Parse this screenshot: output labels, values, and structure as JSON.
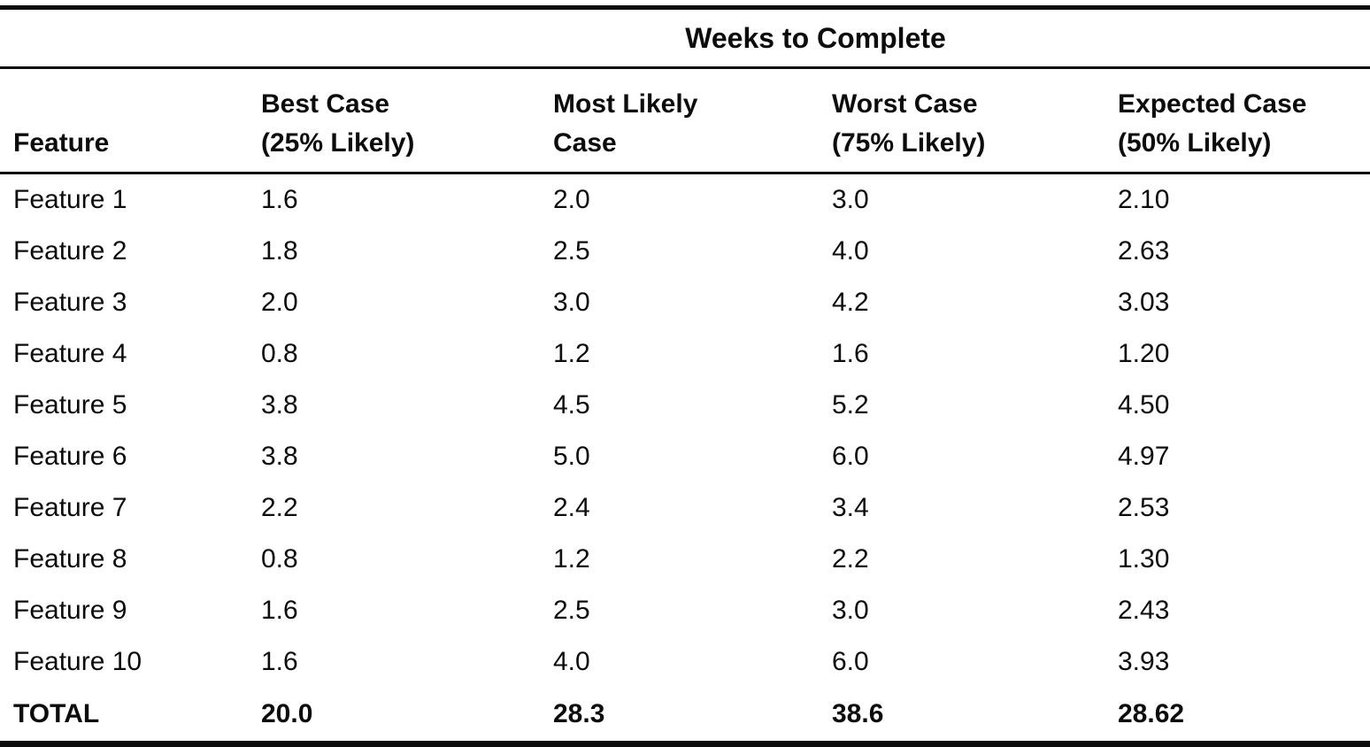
{
  "table": {
    "spanner_header": "Weeks to Complete",
    "columns": {
      "feature": "Feature",
      "best": [
        "Best Case",
        "(25% Likely)"
      ],
      "most_likely": [
        "Most Likely",
        "Case"
      ],
      "worst": [
        "Worst Case",
        "(75% Likely)"
      ],
      "expected": [
        "Expected Case",
        "(50% Likely)"
      ]
    },
    "rows": [
      [
        "Feature 1",
        "1.6",
        "2.0",
        "3.0",
        "2.10"
      ],
      [
        "Feature 2",
        "1.8",
        "2.5",
        "4.0",
        "2.63"
      ],
      [
        "Feature 3",
        "2.0",
        "3.0",
        "4.2",
        "3.03"
      ],
      [
        "Feature 4",
        "0.8",
        "1.2",
        "1.6",
        "1.20"
      ],
      [
        "Feature 5",
        "3.8",
        "4.5",
        "5.2",
        "4.50"
      ],
      [
        "Feature 6",
        "3.8",
        "5.0",
        "6.0",
        "4.97"
      ],
      [
        "Feature 7",
        "2.2",
        "2.4",
        "3.4",
        "2.53"
      ],
      [
        "Feature 8",
        "0.8",
        "1.2",
        "2.2",
        "1.30"
      ],
      [
        "Feature 9",
        "1.6",
        "2.5",
        "3.0",
        "2.43"
      ],
      [
        "Feature 10",
        "1.6",
        "4.0",
        "6.0",
        "3.93"
      ]
    ],
    "total": [
      "TOTAL",
      "20.0",
      "28.3",
      "38.6",
      "28.62"
    ]
  },
  "chart_data": {
    "type": "table",
    "title": "Weeks to Complete",
    "columns": [
      "Feature",
      "Best Case (25% Likely)",
      "Most Likely Case",
      "Worst Case (75% Likely)",
      "Expected Case (50% Likely)"
    ],
    "rows": [
      [
        "Feature 1",
        1.6,
        2.0,
        3.0,
        2.1
      ],
      [
        "Feature 2",
        1.8,
        2.5,
        4.0,
        2.63
      ],
      [
        "Feature 3",
        2.0,
        3.0,
        4.2,
        3.03
      ],
      [
        "Feature 4",
        0.8,
        1.2,
        1.6,
        1.2
      ],
      [
        "Feature 5",
        3.8,
        4.5,
        5.2,
        4.5
      ],
      [
        "Feature 6",
        3.8,
        5.0,
        6.0,
        4.97
      ],
      [
        "Feature 7",
        2.2,
        2.4,
        3.4,
        2.53
      ],
      [
        "Feature 8",
        0.8,
        1.2,
        2.2,
        1.3
      ],
      [
        "Feature 9",
        1.6,
        2.5,
        3.0,
        2.43
      ],
      [
        "Feature 10",
        1.6,
        4.0,
        6.0,
        3.93
      ],
      [
        "TOTAL",
        20.0,
        28.3,
        38.6,
        28.62
      ]
    ]
  }
}
